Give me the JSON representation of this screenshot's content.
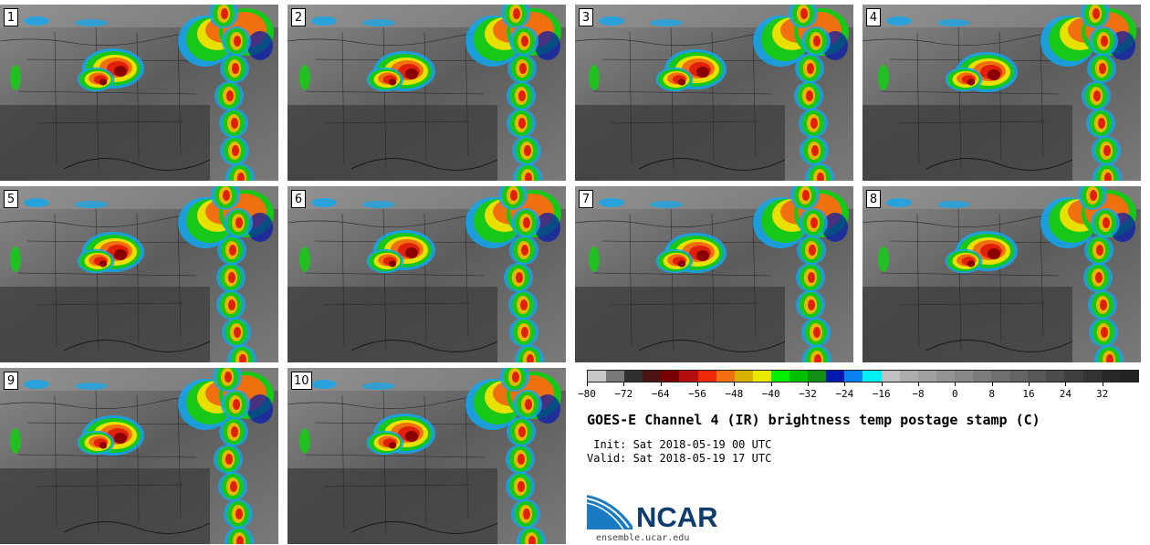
{
  "panels": [
    "1",
    "2",
    "3",
    "4",
    "5",
    "6",
    "7",
    "8",
    "9",
    "10"
  ],
  "colorbar": {
    "ticks": [
      "−80",
      "−72",
      "−64",
      "−56",
      "−48",
      "−40",
      "−32",
      "−24",
      "−16",
      "−8",
      "0",
      "8",
      "16",
      "24",
      "32"
    ],
    "colors": [
      "#c8c8c8",
      "#7a7a7a",
      "#303030",
      "#4a1212",
      "#780000",
      "#b40e0e",
      "#f0280a",
      "#f07010",
      "#d8b000",
      "#e8e800",
      "#00f000",
      "#00c000",
      "#109010",
      "#0018b0",
      "#0880f0",
      "#00f0f0",
      "#c0c0c0",
      "#acacac",
      "#a0a0a0",
      "#949494",
      "#888888",
      "#7c7c7c",
      "#707070",
      "#646464",
      "#585858",
      "#4c4c4c",
      "#404040",
      "#343434",
      "#282828",
      "#222222"
    ]
  },
  "title": "GOES-E Channel 4 (IR) brightness temp postage stamp (C)",
  "init": " Init: Sat 2018-05-19 00 UTC",
  "valid": "Valid: Sat 2018-05-19 17 UTC",
  "logo": {
    "name": "NCAR",
    "url": "ensemble.ucar.edu"
  }
}
